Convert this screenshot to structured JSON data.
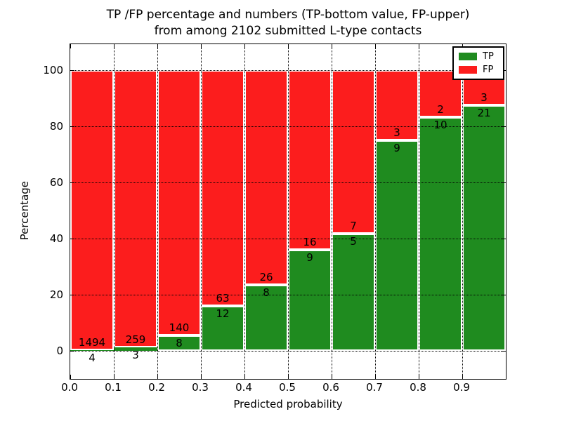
{
  "chart_data": {
    "type": "bar",
    "stacked": true,
    "title_lines": [
      "TP /FP percentage and numbers (TP-bottom value, FP-upper)",
      "from among 2102 submitted L-type contacts"
    ],
    "xlabel": "Predicted probability",
    "ylabel": "Percentage",
    "x_tick_labels": [
      "0.0",
      "0.1",
      "0.2",
      "0.3",
      "0.4",
      "0.5",
      "0.6",
      "0.7",
      "0.8",
      "0.9"
    ],
    "y_ticks": [
      0,
      20,
      40,
      60,
      80,
      100
    ],
    "xlim": [
      0.0,
      1.0
    ],
    "ylim": [
      -10,
      110
    ],
    "bin_width": 0.1,
    "total_contacts": 2102,
    "grid": "dotted",
    "bar_edge_color": "#ffffff",
    "series": [
      {
        "name": "TP",
        "color": "#1f8b1f",
        "counts": [
          4,
          3,
          8,
          12,
          8,
          9,
          5,
          9,
          10,
          21
        ]
      },
      {
        "name": "FP",
        "color": "#fc1d1d",
        "counts": [
          1494,
          259,
          140,
          63,
          26,
          16,
          7,
          3,
          2,
          3
        ]
      }
    ],
    "tp_percent": [
      0.27,
      1.15,
      5.41,
      16.0,
      23.53,
      36.0,
      41.67,
      75.0,
      83.33,
      87.5
    ],
    "legend": {
      "position": "upper right",
      "entries": [
        {
          "label": "TP",
          "color": "#1f8b1f"
        },
        {
          "label": "FP",
          "color": "#fc1d1d"
        }
      ]
    }
  }
}
